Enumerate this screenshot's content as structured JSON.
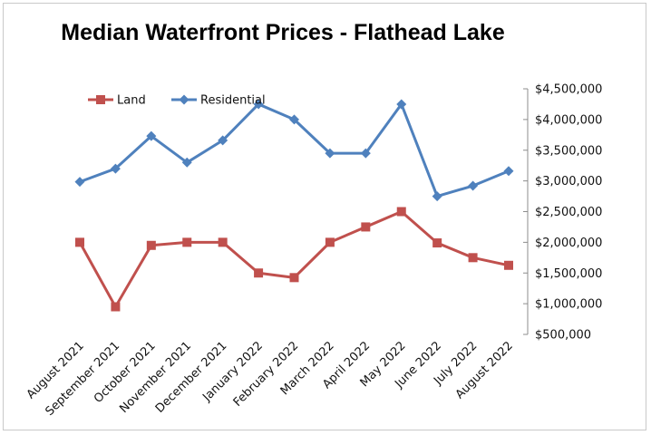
{
  "chart_data": {
    "type": "line",
    "title": "Median Waterfront Prices - Flathead Lake",
    "xlabel": "",
    "ylabel": "",
    "categories": [
      "August 2021",
      "September 2021",
      "October 2021",
      "November 2021",
      "December 2021",
      "January 2022",
      "February 2022",
      "March 2022",
      "April 2022",
      "May 2022",
      "June 2022",
      "July 2022",
      "August 2022"
    ],
    "series": [
      {
        "name": "Land",
        "color": "#C0504D",
        "marker": "square",
        "values": [
          2000000,
          950000,
          1950000,
          2000000,
          2000000,
          1500000,
          1425000,
          2000000,
          2250000,
          2500000,
          1990000,
          1750000,
          1625000
        ]
      },
      {
        "name": "Residential",
        "color": "#4F81BD",
        "marker": "diamond",
        "values": [
          2985000,
          3200000,
          3730000,
          3300000,
          3660000,
          4250000,
          4000000,
          3450000,
          3450000,
          4250000,
          2750000,
          2920000,
          3160000
        ]
      }
    ],
    "ylim": [
      500000,
      4500000
    ],
    "ytick_values": [
      500000,
      1000000,
      1500000,
      2000000,
      2500000,
      3000000,
      3500000,
      4000000,
      4500000
    ],
    "ytick_labels": [
      "$500,000",
      "$1,000,000",
      "$1,500,000",
      "$2,000,000",
      "$2,500,000",
      "$3,000,000",
      "$3,500,000",
      "$4,000,000",
      "$4,500,000"
    ],
    "y_axis_side": "right",
    "grid": false,
    "legend_position": "top-left"
  }
}
